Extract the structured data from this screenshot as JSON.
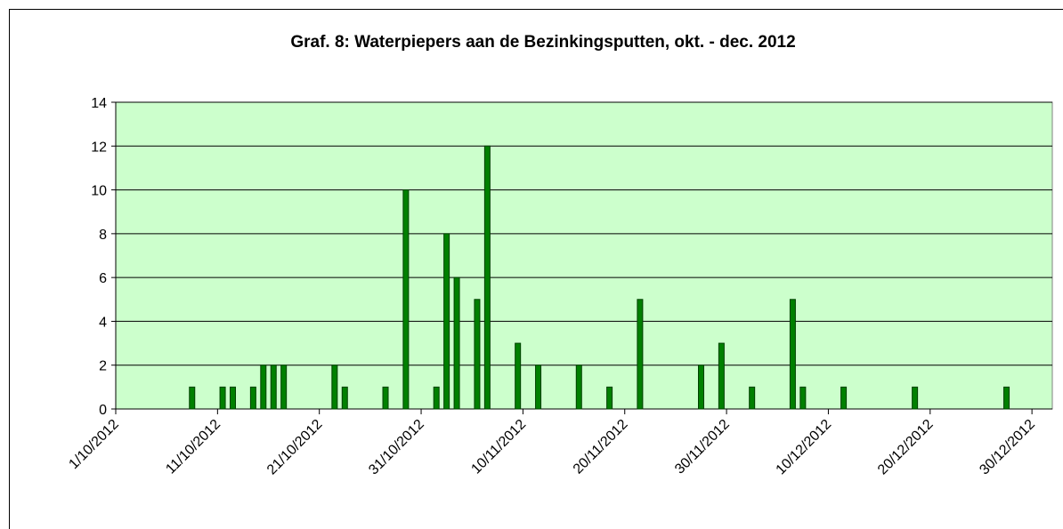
{
  "chart_data": {
    "type": "bar",
    "title": "Graf. 8: Waterpiepers aan de Bezinkingsputten, okt. - dec. 2012",
    "x": [
      "8/10/2012",
      "11/10/2012",
      "12/10/2012",
      "14/10/2012",
      "15/10/2012",
      "16/10/2012",
      "17/10/2012",
      "22/10/2012",
      "23/10/2012",
      "27/10/2012",
      "29/10/2012",
      "1/11/2012",
      "2/11/2012",
      "3/11/2012",
      "5/11/2012",
      "6/11/2012",
      "9/11/2012",
      "11/11/2012",
      "15/11/2012",
      "18/11/2012",
      "21/11/2012",
      "27/11/2012",
      "29/11/2012",
      "2/12/2012",
      "6/12/2012",
      "7/12/2012",
      "11/12/2012",
      "18/12/2012",
      "27/12/2012"
    ],
    "values": [
      1,
      1,
      1,
      1,
      2,
      2,
      2,
      2,
      1,
      1,
      10,
      1,
      8,
      6,
      5,
      12,
      3,
      2,
      2,
      1,
      5,
      2,
      3,
      1,
      5,
      1,
      1,
      1,
      1
    ],
    "color": "#008000",
    "xlim": [
      "1/10/2012",
      "1/1/2013"
    ],
    "xticks": [
      "1/10/2012",
      "11/10/2012",
      "21/10/2012",
      "31/10/2012",
      "10/11/2012",
      "20/11/2012",
      "30/11/2012",
      "10/12/2012",
      "20/12/2012",
      "30/12/2012"
    ],
    "ylim": [
      0,
      14
    ],
    "yticks": [
      0,
      2,
      4,
      6,
      8,
      10,
      12,
      14
    ],
    "grid": true,
    "plot_background": "#ccffcc"
  }
}
